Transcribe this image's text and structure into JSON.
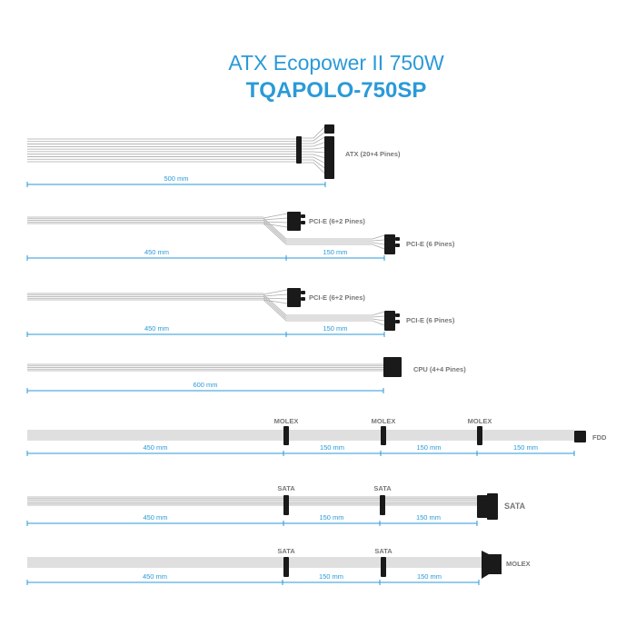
{
  "title": "ATX Ecopower II 750W",
  "model": "TQAPOLO-750SP",
  "colors": {
    "accent": "#2a9ad8",
    "connector": "#1a1a1a",
    "wire": "#aaaaaa",
    "label": "#777777"
  },
  "cables": [
    {
      "connectors": [
        "ATX (20+4 Pines)"
      ],
      "lengths": [
        "500 mm"
      ]
    },
    {
      "connectors": [
        "PCI-E (6+2 Pines)",
        "PCI-E (6 Pines)"
      ],
      "lengths": [
        "450 mm",
        "150 mm"
      ]
    },
    {
      "connectors": [
        "PCI-E (6+2 Pines)",
        "PCI-E (6 Pines)"
      ],
      "lengths": [
        "450 mm",
        "150 mm"
      ]
    },
    {
      "connectors": [
        "CPU (4+4 Pines)"
      ],
      "lengths": [
        "600 mm"
      ]
    },
    {
      "connectors": [
        "MOLEX",
        "MOLEX",
        "MOLEX",
        "FDD"
      ],
      "lengths": [
        "450 mm",
        "150 mm",
        "150 mm",
        "150 mm"
      ]
    },
    {
      "connectors": [
        "SATA",
        "SATA",
        "SATA"
      ],
      "lengths": [
        "450 mm",
        "150 mm",
        "150 mm"
      ]
    },
    {
      "connectors": [
        "SATA",
        "SATA",
        "MOLEX"
      ],
      "lengths": [
        "450 mm",
        "150 mm",
        "150 mm"
      ]
    }
  ]
}
